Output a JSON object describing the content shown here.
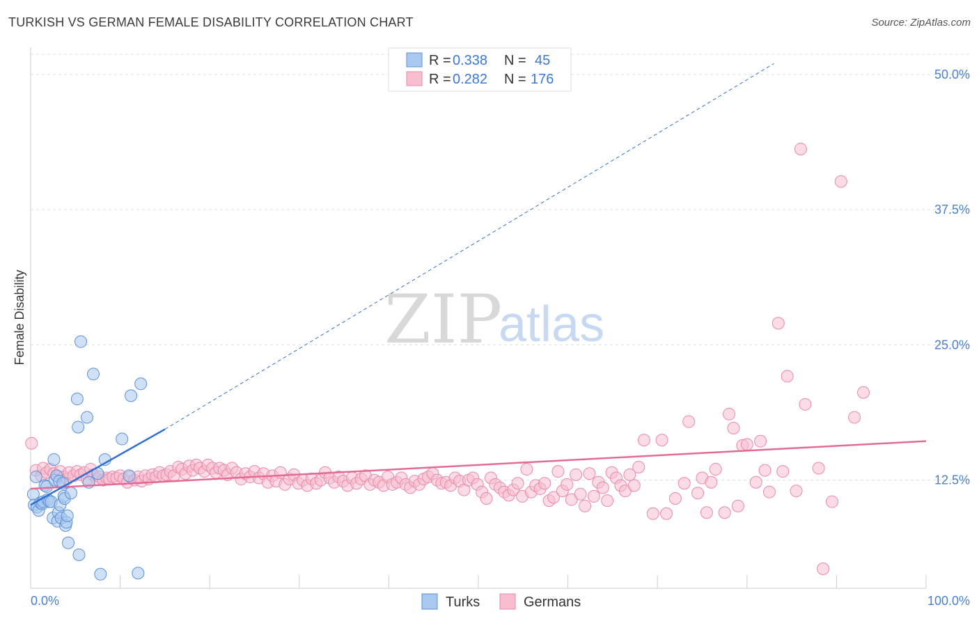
{
  "header": {
    "title": "TURKISH VS GERMAN FEMALE DISABILITY CORRELATION CHART",
    "source": "Source: ZipAtlas.com"
  },
  "legend": {
    "rows": [
      {
        "r_label": "R = ",
        "r_value": "0.338",
        "n_label": "N = ",
        "n_value": "45"
      },
      {
        "r_label": "R = ",
        "r_value": "0.282",
        "n_label": "N = ",
        "n_value": "176"
      }
    ]
  },
  "bottom_legend": [
    "Turks",
    "Germans"
  ],
  "watermark": {
    "zip": "ZIP",
    "atlas": "atlas"
  },
  "colors": {
    "turks_fill": "#a9c8ef",
    "turks_stroke": "#5b8fd6",
    "turks_line": "#2f6fd0",
    "germans_fill": "#f7bed0",
    "germans_stroke": "#e889a8",
    "germans_line": "#e46a96",
    "tick": "#4a7fc8",
    "grid": "#dddddd"
  },
  "chart_data": {
    "type": "scatter",
    "title": "TURKISH VS GERMAN FEMALE DISABILITY CORRELATION CHART",
    "xlabel": "",
    "ylabel": "Female Disability",
    "xlim": [
      0,
      100
    ],
    "ylim": [
      2.5,
      52.5
    ],
    "x_tick_labels": [
      "0.0%",
      "100.0%"
    ],
    "y_ticks": [
      12.5,
      25.0,
      37.5,
      50.0
    ],
    "y_tick_labels": [
      "12.5%",
      "25.0%",
      "37.5%",
      "50.0%"
    ],
    "grid": true,
    "legend_position": "top-center",
    "series": [
      {
        "name": "Turks",
        "r": 0.338,
        "n": 45,
        "trend_solid": [
          [
            0.0,
            10.2
          ],
          [
            15.0,
            17.2
          ]
        ],
        "trend_dashed": [
          [
            15.0,
            17.2
          ],
          [
            83.0,
            51.0
          ]
        ],
        "points": [
          [
            0.3,
            11.2
          ],
          [
            0.4,
            10.2
          ],
          [
            0.6,
            12.8
          ],
          [
            0.7,
            10.0
          ],
          [
            0.9,
            9.7
          ],
          [
            1.1,
            10.4
          ],
          [
            1.3,
            10.3
          ],
          [
            1.4,
            10.5
          ],
          [
            1.6,
            12.0
          ],
          [
            1.8,
            11.9
          ],
          [
            1.9,
            10.7
          ],
          [
            2.1,
            10.5
          ],
          [
            2.3,
            10.5
          ],
          [
            2.5,
            9.0
          ],
          [
            2.7,
            12.5
          ],
          [
            2.6,
            14.4
          ],
          [
            2.9,
            12.9
          ],
          [
            3.0,
            8.7
          ],
          [
            3.2,
            12.4
          ],
          [
            3.1,
            9.5
          ],
          [
            3.3,
            10.2
          ],
          [
            3.4,
            9.0
          ],
          [
            3.6,
            12.2
          ],
          [
            3.7,
            11.0
          ],
          [
            3.8,
            10.8
          ],
          [
            3.9,
            8.3
          ],
          [
            4.0,
            8.6
          ],
          [
            4.1,
            9.2
          ],
          [
            4.2,
            6.7
          ],
          [
            4.5,
            11.3
          ],
          [
            5.2,
            20.0
          ],
          [
            5.3,
            17.4
          ],
          [
            5.4,
            5.6
          ],
          [
            5.6,
            25.3
          ],
          [
            6.3,
            18.3
          ],
          [
            6.5,
            12.3
          ],
          [
            7.0,
            22.3
          ],
          [
            7.5,
            13.1
          ],
          [
            7.8,
            3.8
          ],
          [
            8.3,
            14.4
          ],
          [
            10.2,
            16.3
          ],
          [
            11.0,
            12.9
          ],
          [
            11.2,
            20.3
          ],
          [
            12.0,
            3.9
          ],
          [
            12.3,
            21.4
          ]
        ]
      },
      {
        "name": "Germans",
        "r": 0.282,
        "n": 176,
        "trend": [
          [
            0.0,
            11.7
          ],
          [
            100.0,
            16.1
          ]
        ],
        "points": [
          [
            0.1,
            15.9
          ],
          [
            0.6,
            13.4
          ],
          [
            1.2,
            12.9
          ],
          [
            1.4,
            13.6
          ],
          [
            1.8,
            13.2
          ],
          [
            2.2,
            13.5
          ],
          [
            2.6,
            13.1
          ],
          [
            3.0,
            12.8
          ],
          [
            3.3,
            13.3
          ],
          [
            3.7,
            12.8
          ],
          [
            4.1,
            12.6
          ],
          [
            4.3,
            13.2
          ],
          [
            4.8,
            12.9
          ],
          [
            5.2,
            13.3
          ],
          [
            5.6,
            13.0
          ],
          [
            6.0,
            13.2
          ],
          [
            6.3,
            12.6
          ],
          [
            6.7,
            13.5
          ],
          [
            7.0,
            13.0
          ],
          [
            7.4,
            12.6
          ],
          [
            7.7,
            12.8
          ],
          [
            8.1,
            12.5
          ],
          [
            8.5,
            12.7
          ],
          [
            8.8,
            12.6
          ],
          [
            9.2,
            12.8
          ],
          [
            9.6,
            12.7
          ],
          [
            10.0,
            12.9
          ],
          [
            10.4,
            12.6
          ],
          [
            10.8,
            12.3
          ],
          [
            11.1,
            12.8
          ],
          [
            11.6,
            12.5
          ],
          [
            12.0,
            12.8
          ],
          [
            12.4,
            12.4
          ],
          [
            12.8,
            12.9
          ],
          [
            13.2,
            12.6
          ],
          [
            13.6,
            13.0
          ],
          [
            14.0,
            12.8
          ],
          [
            14.4,
            13.2
          ],
          [
            14.8,
            12.9
          ],
          [
            15.2,
            13.0
          ],
          [
            15.6,
            13.3
          ],
          [
            16.0,
            12.9
          ],
          [
            16.5,
            13.7
          ],
          [
            16.9,
            13.5
          ],
          [
            17.3,
            13.1
          ],
          [
            17.7,
            13.8
          ],
          [
            18.1,
            13.4
          ],
          [
            18.5,
            13.9
          ],
          [
            18.9,
            13.6
          ],
          [
            19.4,
            13.3
          ],
          [
            19.8,
            13.9
          ],
          [
            20.3,
            13.6
          ],
          [
            20.7,
            13.2
          ],
          [
            21.1,
            13.6
          ],
          [
            21.6,
            13.4
          ],
          [
            22.0,
            13.0
          ],
          [
            22.5,
            13.6
          ],
          [
            23.0,
            13.2
          ],
          [
            23.5,
            12.6
          ],
          [
            24.0,
            13.1
          ],
          [
            24.5,
            12.8
          ],
          [
            25.0,
            13.3
          ],
          [
            25.5,
            12.7
          ],
          [
            26.0,
            13.1
          ],
          [
            26.5,
            12.3
          ],
          [
            27.0,
            12.9
          ],
          [
            27.4,
            12.4
          ],
          [
            27.9,
            13.2
          ],
          [
            28.4,
            12.1
          ],
          [
            28.9,
            12.6
          ],
          [
            29.4,
            13.0
          ],
          [
            29.9,
            12.2
          ],
          [
            30.4,
            12.5
          ],
          [
            30.9,
            12.0
          ],
          [
            31.4,
            12.6
          ],
          [
            31.9,
            12.2
          ],
          [
            32.4,
            12.5
          ],
          [
            32.9,
            13.2
          ],
          [
            33.4,
            12.7
          ],
          [
            33.9,
            12.3
          ],
          [
            34.4,
            12.8
          ],
          [
            34.9,
            12.4
          ],
          [
            35.4,
            12.0
          ],
          [
            35.9,
            12.7
          ],
          [
            36.4,
            12.2
          ],
          [
            36.9,
            12.6
          ],
          [
            37.4,
            12.9
          ],
          [
            37.9,
            12.1
          ],
          [
            38.4,
            12.5
          ],
          [
            38.9,
            12.3
          ],
          [
            39.4,
            12.0
          ],
          [
            39.9,
            12.8
          ],
          [
            40.4,
            12.1
          ],
          [
            40.9,
            12.3
          ],
          [
            41.4,
            12.7
          ],
          [
            41.9,
            12.1
          ],
          [
            42.4,
            11.8
          ],
          [
            42.9,
            12.4
          ],
          [
            43.4,
            12.1
          ],
          [
            43.9,
            12.6
          ],
          [
            44.4,
            12.8
          ],
          [
            44.9,
            13.1
          ],
          [
            45.4,
            12.5
          ],
          [
            45.9,
            12.2
          ],
          [
            46.4,
            12.3
          ],
          [
            46.9,
            12.0
          ],
          [
            47.4,
            12.7
          ],
          [
            47.9,
            12.4
          ],
          [
            48.4,
            11.6
          ],
          [
            48.9,
            12.5
          ],
          [
            49.4,
            12.7
          ],
          [
            49.9,
            12.1
          ],
          [
            50.4,
            11.4
          ],
          [
            50.9,
            10.8
          ],
          [
            51.4,
            12.7
          ],
          [
            51.9,
            12.1
          ],
          [
            52.4,
            11.8
          ],
          [
            52.9,
            11.4
          ],
          [
            53.4,
            11.1
          ],
          [
            53.9,
            11.6
          ],
          [
            54.4,
            12.2
          ],
          [
            54.9,
            11.0
          ],
          [
            55.4,
            13.5
          ],
          [
            55.9,
            11.4
          ],
          [
            56.4,
            12.0
          ],
          [
            56.9,
            11.7
          ],
          [
            57.4,
            12.2
          ],
          [
            57.9,
            10.6
          ],
          [
            58.4,
            10.9
          ],
          [
            58.9,
            13.3
          ],
          [
            59.4,
            11.5
          ],
          [
            59.9,
            12.1
          ],
          [
            60.4,
            10.7
          ],
          [
            60.9,
            13.0
          ],
          [
            61.4,
            11.2
          ],
          [
            61.9,
            10.1
          ],
          [
            62.4,
            13.1
          ],
          [
            62.9,
            11.0
          ],
          [
            63.4,
            12.3
          ],
          [
            63.9,
            11.8
          ],
          [
            64.4,
            10.6
          ],
          [
            64.9,
            13.2
          ],
          [
            65.4,
            12.7
          ],
          [
            65.9,
            12.0
          ],
          [
            66.4,
            11.5
          ],
          [
            66.9,
            13.0
          ],
          [
            67.4,
            12.0
          ],
          [
            67.9,
            13.7
          ],
          [
            68.5,
            16.2
          ],
          [
            69.5,
            9.4
          ],
          [
            70.5,
            16.2
          ],
          [
            71.0,
            9.4
          ],
          [
            72.0,
            10.8
          ],
          [
            73.0,
            12.2
          ],
          [
            73.5,
            17.9
          ],
          [
            74.5,
            11.3
          ],
          [
            75.0,
            12.7
          ],
          [
            75.5,
            9.5
          ],
          [
            76.0,
            12.3
          ],
          [
            76.5,
            13.5
          ],
          [
            77.5,
            9.5
          ],
          [
            78.0,
            18.6
          ],
          [
            78.5,
            17.3
          ],
          [
            79.0,
            10.1
          ],
          [
            79.5,
            15.7
          ],
          [
            80.0,
            15.8
          ],
          [
            81.0,
            12.3
          ],
          [
            81.5,
            16.1
          ],
          [
            82.0,
            13.4
          ],
          [
            82.5,
            11.4
          ],
          [
            83.5,
            27.0
          ],
          [
            84.0,
            13.3
          ],
          [
            84.5,
            22.1
          ],
          [
            85.5,
            11.5
          ],
          [
            86.0,
            43.1
          ],
          [
            86.5,
            19.5
          ],
          [
            88.0,
            13.6
          ],
          [
            88.5,
            4.3
          ],
          [
            89.5,
            10.5
          ],
          [
            90.5,
            40.1
          ],
          [
            92.0,
            18.3
          ],
          [
            93.0,
            20.6
          ]
        ]
      }
    ]
  }
}
